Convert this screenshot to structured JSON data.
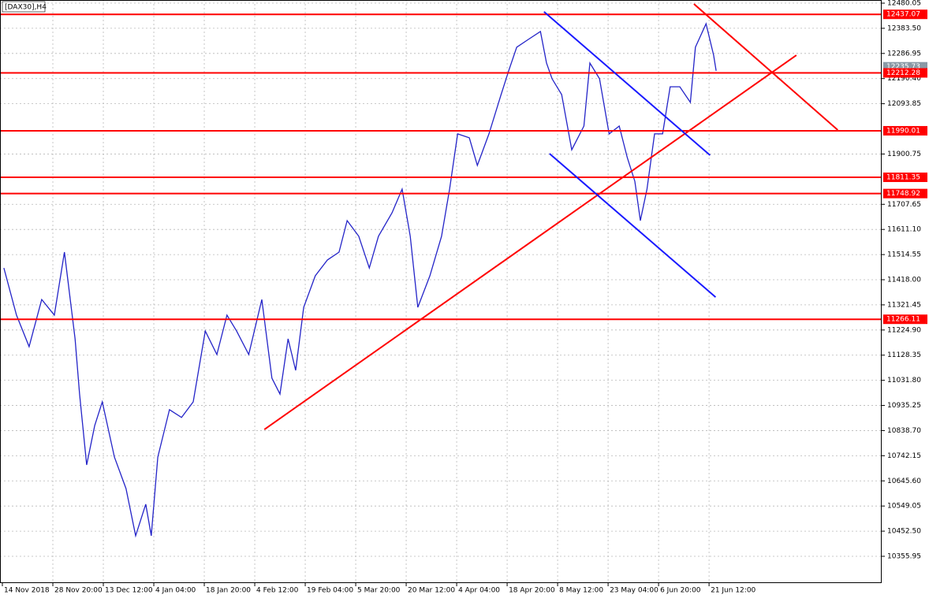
{
  "chart_data": {
    "type": "line",
    "title": "[DAX30],H4",
    "xticks": [
      {
        "value": 0,
        "label": "14 Nov 2018"
      },
      {
        "value": 1,
        "label": "28 Nov 20:00"
      },
      {
        "value": 2,
        "label": "13 Dec 12:00"
      },
      {
        "value": 3,
        "label": "4 Jan 04:00"
      },
      {
        "value": 4,
        "label": "18 Jan 20:00"
      },
      {
        "value": 5,
        "label": "4 Feb 12:00"
      },
      {
        "value": 6,
        "label": "19 Feb 04:00"
      },
      {
        "value": 7,
        "label": "5 Mar 20:00"
      },
      {
        "value": 8,
        "label": "20 Mar 12:00"
      },
      {
        "value": 9,
        "label": "4 Apr 04:00"
      },
      {
        "value": 10,
        "label": "18 Apr 20:00"
      },
      {
        "value": 11,
        "label": "8 May 12:00"
      },
      {
        "value": 12,
        "label": "23 May 04:00"
      },
      {
        "value": 13,
        "label": "6 Jun 20:00"
      },
      {
        "value": 14,
        "label": "21 Jun 12:00"
      }
    ],
    "xlim": [
      -0.047,
      17.42
    ],
    "ylim": [
      10253.07,
      12492.15
    ],
    "yticks": [
      12480.05,
      {
        "value": 12383.5,
        "label": "12383.50"
      },
      12286.95,
      {
        "value": 12190.4,
        "label": "12190.40"
      },
      12093.85,
      11900.75,
      11707.65,
      {
        "value": 11611.1,
        "label": "11611.10"
      },
      11514.55,
      {
        "value": 11418,
        "label": "11418.00"
      },
      11321.45,
      {
        "value": 11224.9,
        "label": "11224.90"
      },
      11128.35,
      {
        "value": 11031.8,
        "label": "11031.80"
      },
      10935.25,
      {
        "value": 10838.7,
        "label": "10838.70"
      },
      10742.15,
      {
        "value": 10645.6,
        "label": "10645.60"
      },
      10549.05,
      {
        "value": 10452.5,
        "label": "10452.50"
      },
      10355.95
    ],
    "grid": true,
    "series": [
      {
        "color": "#2424c8",
        "x": [
          0.03,
          0.28,
          0.53,
          0.78,
          1.03,
          1.23,
          1.44,
          1.53,
          1.67,
          1.83,
          1.98,
          2.22,
          2.45,
          2.64,
          2.84,
          2.95,
          3.08,
          3.31,
          3.55,
          3.78,
          4.02,
          4.25,
          4.45,
          4.64,
          4.88,
          5.14,
          5.34,
          5.5,
          5.66,
          5.81,
          5.97,
          6.2,
          6.44,
          6.67,
          6.83,
          7.06,
          7.27,
          7.45,
          7.72,
          7.92,
          8.08,
          8.23,
          8.47,
          8.7,
          8.86,
          9.02,
          9.25,
          9.41,
          9.64,
          9.88,
          10.03,
          10.19,
          10.42,
          10.66,
          10.78,
          10.89,
          11.08,
          11.28,
          11.52,
          11.64,
          11.83,
          12.02,
          12.22,
          12.38,
          12.53,
          12.64,
          12.77,
          12.92,
          13.08,
          13.23,
          13.42,
          13.63,
          13.73,
          13.94,
          14.09,
          14.14
        ],
        "values": [
          11463,
          11282,
          11161,
          11342,
          11282,
          11524,
          11191,
          10979,
          10707,
          10858,
          10949,
          10737,
          10616,
          10435,
          10556,
          10435,
          10737,
          10919,
          10889,
          10949,
          11221,
          11131,
          11282,
          11221,
          11131,
          11342,
          11040,
          10979,
          11191,
          11070,
          11312,
          11433,
          11494,
          11524,
          11645,
          11585,
          11463,
          11585,
          11675,
          11766,
          11585,
          11312,
          11433,
          11585,
          11766,
          11978,
          11963,
          11857,
          11978,
          12129,
          12220,
          12311,
          12341,
          12371,
          12250,
          12190,
          12129,
          11917,
          12008,
          12250,
          12190,
          11978,
          12008,
          11887,
          11796,
          11645,
          11766,
          11978,
          11978,
          12159,
          12159,
          12099,
          12311,
          12401,
          12280,
          12220
        ]
      }
    ],
    "levels": {
      "color": "#ff0000",
      "values": [
        12437.07,
        12212.28,
        11990.01,
        11811.35,
        11748.92,
        11266.11
      ]
    },
    "current_price": {
      "color": "#8a9aa6",
      "value": 12235.73
    },
    "trendlines": [
      {
        "color": "#ff0000",
        "x": [
          5.19,
          15.73
        ],
        "values": [
          10843,
          12280
        ]
      },
      {
        "color": "#ff0000",
        "x": [
          13.7,
          16.55
        ],
        "values": [
          12477,
          11993
        ]
      },
      {
        "color": "#1a1aff",
        "x": [
          10.73,
          14.02
        ],
        "values": [
          12447,
          11896
        ]
      },
      {
        "color": "#1a1aff",
        "x": [
          10.84,
          14.13
        ],
        "values": [
          11902,
          11351
        ]
      }
    ]
  }
}
